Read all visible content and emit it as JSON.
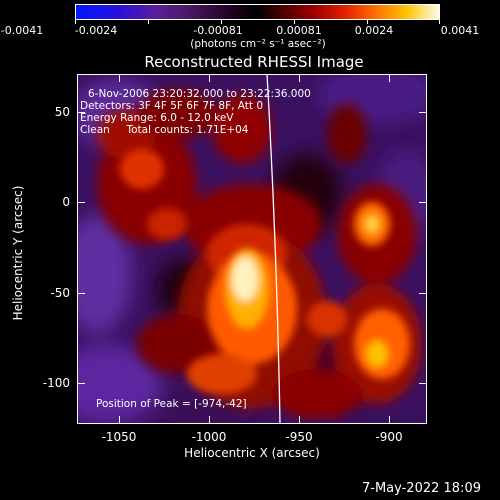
{
  "colorbar": {
    "labels": [
      "-0.0041",
      "-0.0024",
      "-0.00081",
      "0.00081",
      "0.0024",
      "0.0041"
    ],
    "unit": "(photons cm⁻² s⁻¹ asec⁻²)"
  },
  "plot": {
    "title": "Reconstructed RHESSI Image",
    "info": {
      "time": "6-Nov-2006 23:20:32.000 to 23:22:36.000",
      "detectors": "Detectors: 3F 4F 5F 6F 7F 8F, Att 0",
      "energy": "Energy Range: 6.0 - 12.0 keV",
      "clean": "Clean     Total counts: 1.71E+04"
    },
    "peak": "Position of Peak = [-974,-42]",
    "xlabel": "Heliocentric X (arcsec)",
    "ylabel": "Heliocentric Y (arcsec)",
    "xticks": [
      "-1050",
      "-1000",
      "-950",
      "-900"
    ],
    "yticks": [
      "50",
      "0",
      "-50",
      "-100"
    ],
    "xlim": [
      -1072,
      -878
    ],
    "ylim": [
      -120,
      68
    ]
  },
  "footer": {
    "date": "7-May-2022 18:09"
  },
  "colors": {
    "background": "#000000",
    "text": "#ffffff",
    "limb": "#ffffff"
  }
}
